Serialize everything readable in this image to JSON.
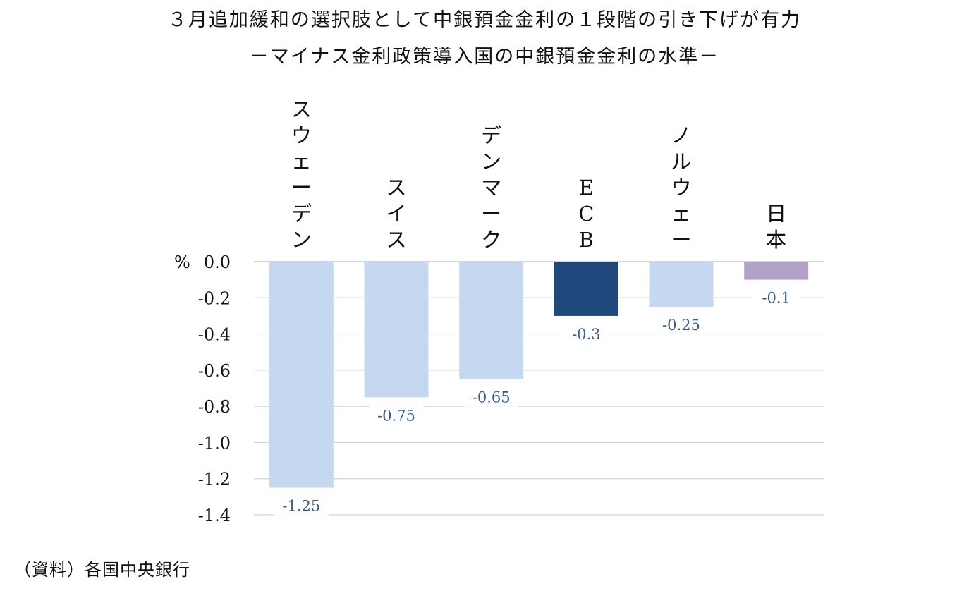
{
  "title": "３月追加緩和の選択肢として中銀預金金利の１段階の引き下げが有力",
  "subtitle": "－マイナス金利政策導入国の中銀預金金利の水準－",
  "source_note": "（資料）各国中央銀行",
  "chart_data": {
    "type": "bar",
    "title": "３月追加緩和の選択肢として中銀預金金利の１段階の引き下げが有力",
    "subtitle": "－マイナス金利政策導入国の中銀預金金利の水準－",
    "ylabel": "%",
    "ylim": [
      -1.4,
      0.0
    ],
    "yticks": [
      "0.0",
      "-0.2",
      "-0.4",
      "-0.6",
      "-0.8",
      "-1.0",
      "-1.2",
      "-1.4"
    ],
    "ytick_values": [
      0.0,
      -0.2,
      -0.4,
      -0.6,
      -0.8,
      -1.0,
      -1.2,
      -1.4
    ],
    "grid": true,
    "categories": [
      "スウェーデン",
      "スイス",
      "デンマーク",
      "ECB",
      "ノルウェー",
      "日本"
    ],
    "values": [
      -1.25,
      -0.75,
      -0.65,
      -0.3,
      -0.25,
      -0.1
    ],
    "data_labels": [
      "-1.25",
      "-0.75",
      "-0.65",
      "-0.3",
      "-0.25",
      "-0.1"
    ],
    "colors": [
      "#c6d8ef",
      "#c6d8ef",
      "#c6d8ef",
      "#1f487c",
      "#c6d8ef",
      "#b2a2c8"
    ],
    "label_color": "#3d5a80"
  }
}
